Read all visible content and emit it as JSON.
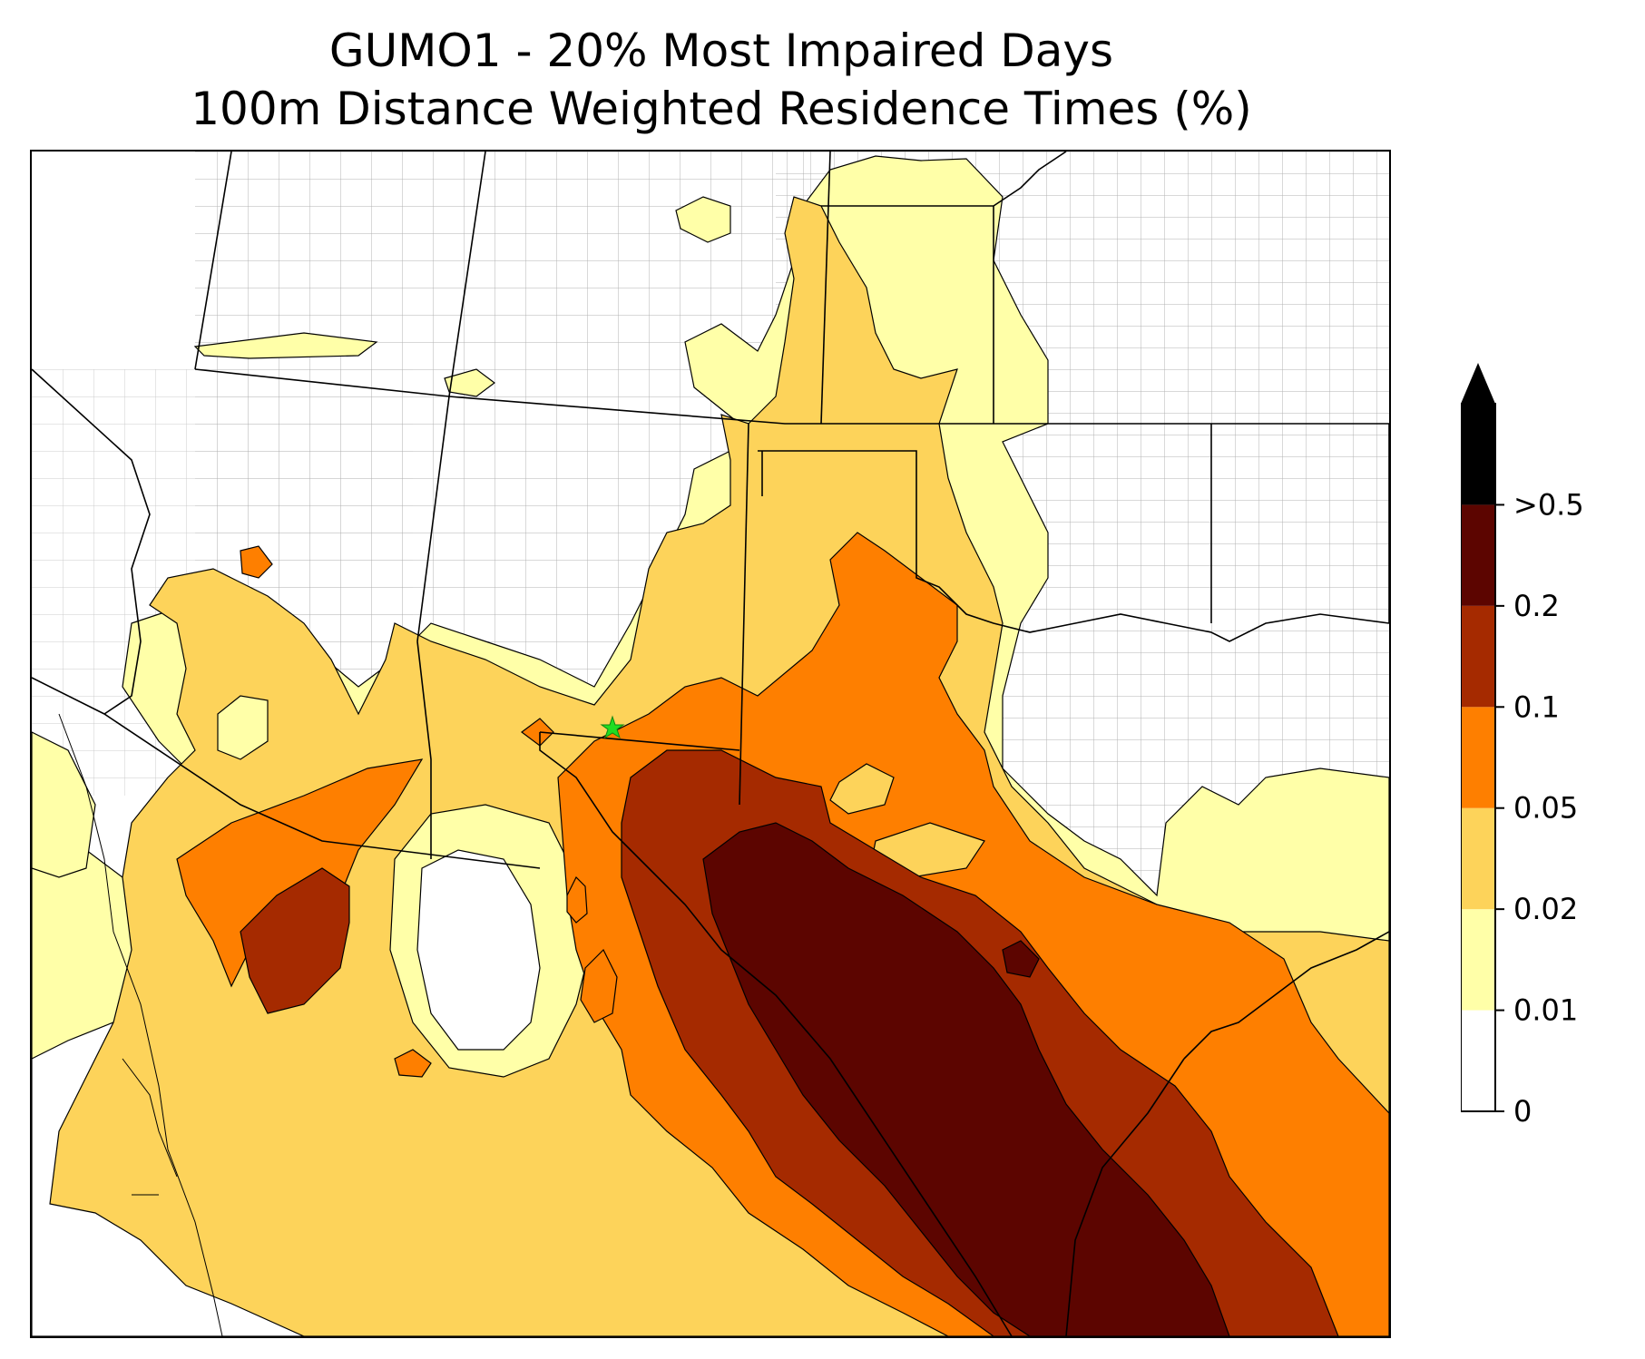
{
  "title": {
    "line1": "GUMO1 - 20% Most Impaired Days",
    "line2": "100m Distance Weighted Residence Times (%)"
  },
  "colorbar": {
    "extend": "max",
    "levels": [
      {
        "label": "0",
        "color": "#ffffff"
      },
      {
        "label": "0.01",
        "color": "#ffffa8"
      },
      {
        "label": "0.02",
        "color": "#fdd35a"
      },
      {
        "label": "0.05",
        "color": "#fe7f00"
      },
      {
        "label": "0.1",
        "color": "#a52a00"
      },
      {
        "label": "0.2",
        "color": "#5c0500"
      },
      {
        "label": ">0.5",
        "color": "#000000"
      }
    ]
  },
  "site_marker": {
    "symbol": "star",
    "color": "#22dd22"
  },
  "colors": {
    "c001": "#ffffa8",
    "c002": "#fdd35a",
    "c005": "#fe7f00",
    "c01": "#a52a00",
    "c02": "#5c0500",
    "county_lines": "#aaaaaa",
    "state_lines": "#000000"
  }
}
